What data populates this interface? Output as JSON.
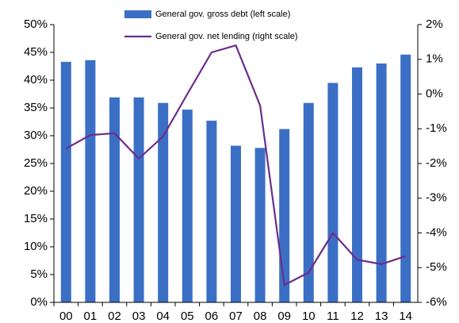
{
  "chart_data": {
    "type": "bar_line",
    "categories": [
      "00",
      "01",
      "02",
      "03",
      "04",
      "05",
      "06",
      "07",
      "08",
      "09",
      "10",
      "11",
      "12",
      "13",
      "14"
    ],
    "series": [
      {
        "name": "General gov. gross debt (left scale)",
        "type": "bar",
        "color": "#3b6fc5",
        "values": [
          43.3,
          43.6,
          36.9,
          36.9,
          35.9,
          34.7,
          32.7,
          28.2,
          27.8,
          31.2,
          35.9,
          39.5,
          42.3,
          43.0,
          44.6
        ]
      },
      {
        "name": "General gov. net lending (right scale)",
        "type": "line",
        "axis": "y2",
        "color": "#6b2d8c",
        "values": [
          -1.57,
          -1.18,
          -1.13,
          -1.86,
          -1.22,
          0.0,
          1.2,
          1.4,
          -0.33,
          -5.5,
          -5.14,
          -4.0,
          -4.77,
          -4.9,
          -4.67
        ]
      }
    ],
    "ylim": [
      0,
      50
    ],
    "yticks": [
      {
        "value": 0,
        "label": "0%"
      },
      {
        "value": 5,
        "label": "5%"
      },
      {
        "value": 10,
        "label": "10%"
      },
      {
        "value": 15,
        "label": "15%"
      },
      {
        "value": 20,
        "label": "20%"
      },
      {
        "value": 25,
        "label": "25%"
      },
      {
        "value": 30,
        "label": "30%"
      },
      {
        "value": 35,
        "label": "35%"
      },
      {
        "value": 40,
        "label": "40%"
      },
      {
        "value": 45,
        "label": "45%"
      },
      {
        "value": 50,
        "label": "50%"
      }
    ],
    "y2lim": [
      -6,
      2
    ],
    "y2ticks": [
      {
        "value": -6,
        "label": "-6%"
      },
      {
        "value": -5,
        "label": "-5%"
      },
      {
        "value": -4,
        "label": "-4%"
      },
      {
        "value": -3,
        "label": "-3%"
      },
      {
        "value": -2,
        "label": "-2%"
      },
      {
        "value": -1,
        "label": "-1%"
      },
      {
        "value": 0,
        "label": "0%"
      },
      {
        "value": 1,
        "label": "1%"
      },
      {
        "value": 2,
        "label": "2%"
      }
    ],
    "legend": "top",
    "grid": false
  }
}
